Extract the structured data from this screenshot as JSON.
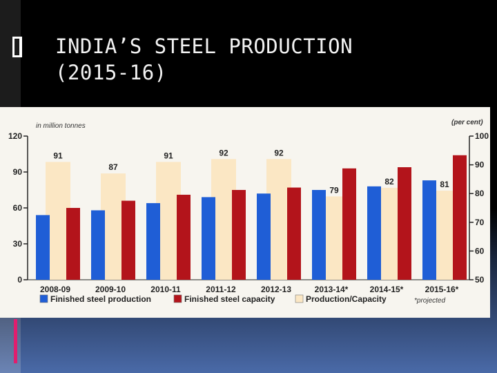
{
  "slide": {
    "title": "INDIA’S STEEL PRODUCTION\n(2015-16)"
  },
  "colors": {
    "finished_steel_production": "#1f5ed6",
    "finished_steel_capacity": "#b3141b",
    "production_capacity": "#fbe7c4",
    "chart_background": "#f7f5ef",
    "slide_background": "#000000",
    "accent": "#e01e6e"
  },
  "chart_data": {
    "type": "bar",
    "left_axis_note": "in million tonnes",
    "right_axis_note": "(per cent)",
    "categories": [
      "2008-09",
      "2009-10",
      "2010-11",
      "2011-12",
      "2012-13",
      "2013-14*",
      "2014-15*",
      "2015-16*"
    ],
    "left_ylim": [
      0,
      120
    ],
    "left_ticks": [
      "120",
      "90",
      "60",
      "30",
      "0"
    ],
    "right_ylim": [
      50,
      100
    ],
    "right_ticks": [
      "100",
      "90",
      "80",
      "70",
      "60",
      "50"
    ],
    "series": [
      {
        "name": "Finished steel production",
        "axis": "left",
        "values": [
          54,
          58,
          64,
          69,
          72,
          75,
          78,
          83
        ]
      },
      {
        "name": "Finished steel capacity",
        "axis": "left",
        "values": [
          60,
          66,
          71,
          75,
          77,
          93,
          94,
          104
        ]
      },
      {
        "name": "Production/Capacity",
        "axis": "right",
        "values": [
          91,
          87,
          91,
          92,
          92,
          79,
          82,
          81
        ],
        "labels": [
          "91",
          "87",
          "91",
          "92",
          "92",
          "79",
          "82",
          "81"
        ]
      }
    ],
    "footnote": "*projected",
    "legend_position": "bottom"
  }
}
